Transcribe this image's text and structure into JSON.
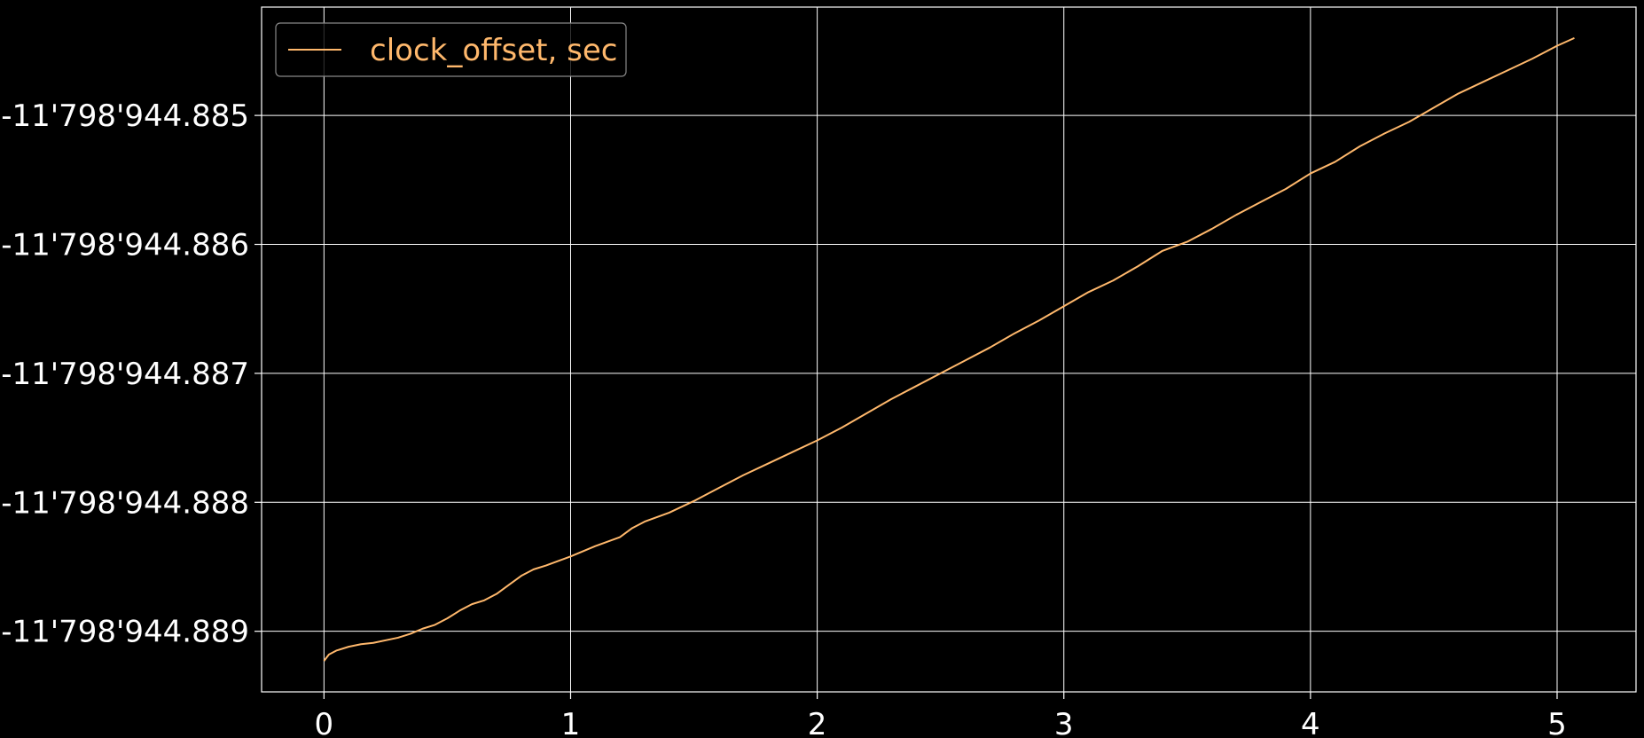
{
  "chart_data": {
    "type": "line",
    "title": "",
    "xlabel": "",
    "ylabel": "",
    "xlim": [
      -0.253,
      5.32
    ],
    "ylim": [
      -11798944.88947,
      -11798944.88416
    ],
    "x_ticks": [
      {
        "value": 0,
        "label": "0"
      },
      {
        "value": 1,
        "label": "1"
      },
      {
        "value": 2,
        "label": "2"
      },
      {
        "value": 3,
        "label": "3"
      },
      {
        "value": 4,
        "label": "4"
      },
      {
        "value": 5,
        "label": "5"
      }
    ],
    "y_ticks": [
      {
        "value": -11798944.885,
        "label": "-11'798'944.885"
      },
      {
        "value": -11798944.886,
        "label": "-11'798'944.886"
      },
      {
        "value": -11798944.887,
        "label": "-11'798'944.887"
      },
      {
        "value": -11798944.888,
        "label": "-11'798'944.888"
      },
      {
        "value": -11798944.889,
        "label": "-11'798'944.889"
      }
    ],
    "grid": true,
    "legend_position": "top-left",
    "background_color": "#000000",
    "grid_color": "#ffffff",
    "text_color": "#ffffff",
    "series": [
      {
        "name": "clock_offset, sec",
        "color": "#ffb86c",
        "x": [
          0.0,
          0.02,
          0.05,
          0.1,
          0.15,
          0.2,
          0.3,
          0.35,
          0.4,
          0.45,
          0.5,
          0.55,
          0.6,
          0.65,
          0.7,
          0.75,
          0.8,
          0.85,
          0.9,
          1.0,
          1.1,
          1.2,
          1.25,
          1.3,
          1.4,
          1.5,
          1.6,
          1.7,
          1.8,
          1.9,
          2.0,
          2.1,
          2.2,
          2.3,
          2.4,
          2.5,
          2.6,
          2.7,
          2.8,
          2.9,
          3.0,
          3.1,
          3.2,
          3.3,
          3.4,
          3.5,
          3.6,
          3.7,
          3.8,
          3.9,
          4.0,
          4.1,
          4.2,
          4.3,
          4.4,
          4.5,
          4.6,
          4.7,
          4.8,
          4.9,
          5.0,
          5.07
        ],
        "values": [
          -11798944.88923,
          -11798944.88918,
          -11798944.88915,
          -11798944.88912,
          -11798944.8891,
          -11798944.88909,
          -11798944.88905,
          -11798944.88902,
          -11798944.88898,
          -11798944.88895,
          -11798944.8889,
          -11798944.88884,
          -11798944.88879,
          -11798944.88876,
          -11798944.88871,
          -11798944.88864,
          -11798944.88857,
          -11798944.88852,
          -11798944.88849,
          -11798944.88842,
          -11798944.88834,
          -11798944.88827,
          -11798944.8882,
          -11798944.88815,
          -11798944.88808,
          -11798944.88799,
          -11798944.88789,
          -11798944.88779,
          -11798944.8877,
          -11798944.88761,
          -11798944.88752,
          -11798944.88742,
          -11798944.88731,
          -11798944.8872,
          -11798944.8871,
          -11798944.887,
          -11798944.8869,
          -11798944.8868,
          -11798944.88669,
          -11798944.88659,
          -11798944.88648,
          -11798944.88637,
          -11798944.88628,
          -11798944.88617,
          -11798944.88605,
          -11798944.88598,
          -11798944.88588,
          -11798944.88577,
          -11798944.88567,
          -11798944.88557,
          -11798944.88545,
          -11798944.88536,
          -11798944.88524,
          -11798944.88514,
          -11798944.88505,
          -11798944.88494,
          -11798944.88483,
          -11798944.88474,
          -11798944.88465,
          -11798944.88456,
          -11798944.88446,
          -11798944.8844
        ]
      }
    ]
  }
}
